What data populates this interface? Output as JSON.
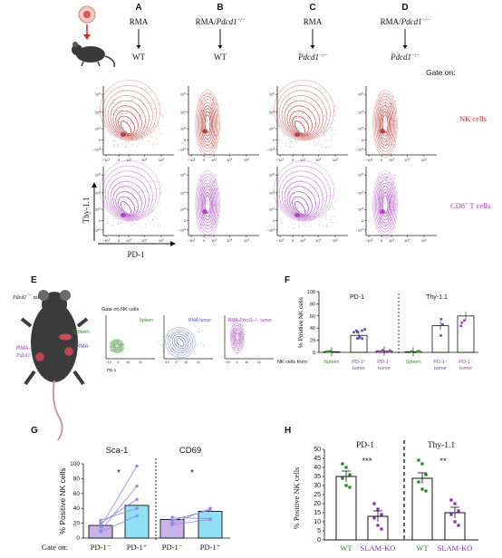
{
  "panels": {
    "A": {
      "letter": "A",
      "tumor": "RMA",
      "host": "WT"
    },
    "B": {
      "letter": "B",
      "tumor_prefix": "RMA/",
      "tumor_gene": "Pdcd1",
      "tumor_sup": "−/−",
      "host": "WT"
    },
    "C": {
      "letter": "C",
      "tumor": "RMA",
      "host_gene": "Pdcd1",
      "host_sup": "−/−"
    },
    "D": {
      "letter": "D",
      "tumor_prefix": "RMA/",
      "tumor_gene": "Pdcd1",
      "tumor_sup": "−/−",
      "host_gene": "Pdcd1",
      "host_sup": "−/−"
    },
    "gate_on": "Gate on:",
    "row_labels": {
      "nk": "NK cells",
      "cd8": "CD8",
      "cd8_sup": "+",
      "cd8_tail": " T cells"
    },
    "y_axis": "Thy-1.1",
    "x_axis": "PD-1",
    "tick_labels": {
      "neg3": "−10",
      "neg3_sup": "3",
      "zero": "0",
      "p3": "10",
      "p3_sup": "3",
      "p4": "10",
      "p4_sup": "4",
      "p5": "10",
      "p5_sup": "5"
    }
  },
  "panel_E": {
    "letter": "E",
    "mice_label_gene": "Pdcd1",
    "mice_label_sup": "−/−",
    "mice_label_tail": " mice",
    "spleen": "Spleen",
    "rma": "RMA",
    "rma_pdcd1": "RMA-",
    "rma_pdcd1_gene": "Pdcd1",
    "rma_pdcd1_sup": "−/−",
    "gate_on_nk": "Gate on NK cells",
    "plot_labels": [
      "Spleen",
      "RMA tumor",
      "RMA-Pdcd1−/− tumor"
    ],
    "pd1": "PD-1"
  },
  "panel_F": {
    "letter": "F",
    "y_axis": "% Positive NK cells",
    "sections": [
      "PD-1",
      "Thy-1.1"
    ],
    "nk_from": "NK cells from:",
    "x_labels": [
      {
        "line1": "Spleen",
        "line2": ""
      },
      {
        "line1": "PD-1⁺",
        "line2": "tumor"
      },
      {
        "line1": "PD-1⁻",
        "line2": "tumor"
      },
      {
        "line1": "Spleen",
        "line2": ""
      },
      {
        "line1": "PD-1⁺",
        "line2": "tumor"
      },
      {
        "line1": "PD-1⁻",
        "line2": "tumor"
      }
    ],
    "y_ticks": [
      "0",
      "20",
      "40",
      "60",
      "80",
      "100"
    ]
  },
  "panel_G": {
    "letter": "G",
    "y_axis": "% Positive NK cells",
    "titles": [
      "Sca-1",
      "CD69"
    ],
    "stars": [
      "*",
      "*"
    ],
    "gate_on": "Gate on:",
    "x_labels": [
      "PD-1⁻",
      "PD-1⁺",
      "PD-1⁻",
      "PD-1⁺"
    ],
    "y_ticks": [
      "0",
      "20",
      "40",
      "60",
      "80",
      "100"
    ]
  },
  "panel_H": {
    "letter": "H",
    "y_axis": "% Positive NK cells",
    "titles": [
      "PD-1",
      "Thy-1.1"
    ],
    "stars": [
      "***",
      "**"
    ],
    "x_labels": [
      "WT",
      "SLAM-KO",
      "WT",
      "SLAM-KO"
    ],
    "y_ticks": [
      "0",
      "5",
      "10",
      "15",
      "20",
      "25",
      "30",
      "35",
      "40",
      "45",
      "50"
    ]
  },
  "colors": {
    "nk": "#b0322f",
    "cd8": "#a23bb5",
    "spleen": "#2e8b2e",
    "rma": "#4a52b8",
    "rmako": "#a23bb5",
    "wt": "#1d8a1d",
    "slamko": "#8a2bb5",
    "g_neg": "#c7b3e8",
    "g_pos": "#8fe0f2"
  },
  "chart_data": [
    {
      "type": "bar",
      "panel": "F",
      "ylabel": "% Positive NK cells",
      "ylim": [
        0,
        100
      ],
      "categories": [
        "Spleen",
        "PD-1⁺ tumor",
        "PD-1⁻ tumor",
        "Spleen",
        "PD-1⁺ tumor",
        "PD-1⁻ tumor"
      ],
      "values": [
        1,
        28,
        2,
        1,
        44,
        60
      ]
    },
    {
      "type": "bar",
      "panel": "G",
      "ylabel": "% Positive NK cells",
      "ylim": [
        0,
        100
      ],
      "categories": [
        "PD-1⁻",
        "PD-1⁺",
        "PD-1⁻",
        "PD-1⁺"
      ],
      "values": [
        17,
        44,
        25,
        36
      ]
    },
    {
      "type": "bar",
      "panel": "H",
      "ylabel": "% Positive NK cells",
      "ylim": [
        0,
        50
      ],
      "categories": [
        "WT",
        "SLAM-KO",
        "WT",
        "SLAM-KO"
      ],
      "values": [
        35,
        13,
        34,
        15
      ]
    }
  ]
}
